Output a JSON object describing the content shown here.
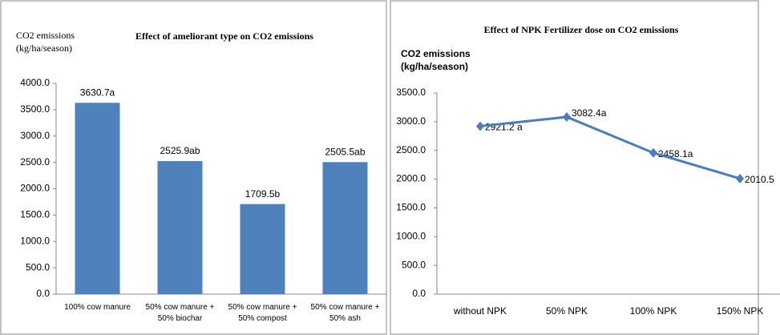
{
  "chart_data": [
    {
      "type": "bar",
      "title": "Effect of ameliorant type on CO2 emissions",
      "y_label": [
        "CO2 emissions",
        "(kg/ha/season)"
      ],
      "categories": [
        "100% cow manure",
        "50% cow manure + 50% biochar",
        "50% cow manure + 50% compost",
        "50% cow manure + 50% ash"
      ],
      "values": [
        3630.7,
        2525.9,
        1709.5,
        2505.5
      ],
      "value_labels": [
        "3630.7a",
        "2525.9ab",
        "1709.5b",
        "2505.5ab"
      ],
      "color": "#4f81bd",
      "ylim": [
        0,
        4000
      ],
      "yticks": [
        {
          "value": 0,
          "label": "0.0"
        },
        {
          "value": 500,
          "label": "500.0"
        },
        {
          "value": 1000,
          "label": "1000.0"
        },
        {
          "value": 1500,
          "label": "1500.0"
        },
        {
          "value": 2000,
          "label": "2000.0"
        },
        {
          "value": 2500,
          "label": "2500.0"
        },
        {
          "value": 3000,
          "label": "3000.0"
        },
        {
          "value": 3500,
          "label": "3500.0"
        },
        {
          "value": 4000,
          "label": "4000.0"
        }
      ]
    },
    {
      "type": "line",
      "title": "Effect  of NPK Fertilizer dose on CO2 emissions",
      "y_label": [
        "CO2 emissions",
        "(kg/ha/season)"
      ],
      "categories": [
        "without NPK",
        "50% NPK",
        "100% NPK",
        "150% NPK"
      ],
      "values": [
        2921.2,
        3082.4,
        2458.1,
        2010.5
      ],
      "value_labels": [
        "2921.2 a",
        "3082.4a",
        "2458.1a",
        "2010.5"
      ],
      "color": "#4a7ebb",
      "ylim": [
        0,
        3500
      ],
      "yticks": [
        {
          "value": 0,
          "label": "0.0"
        },
        {
          "value": 500,
          "label": "500.0"
        },
        {
          "value": 1000,
          "label": "1000.0"
        },
        {
          "value": 1500,
          "label": "1500.0"
        },
        {
          "value": 2000,
          "label": "2000.0"
        },
        {
          "value": 2500,
          "label": "2500.0"
        },
        {
          "value": 3000,
          "label": "3000.0"
        },
        {
          "value": 3500,
          "label": "3500.0"
        }
      ]
    }
  ]
}
